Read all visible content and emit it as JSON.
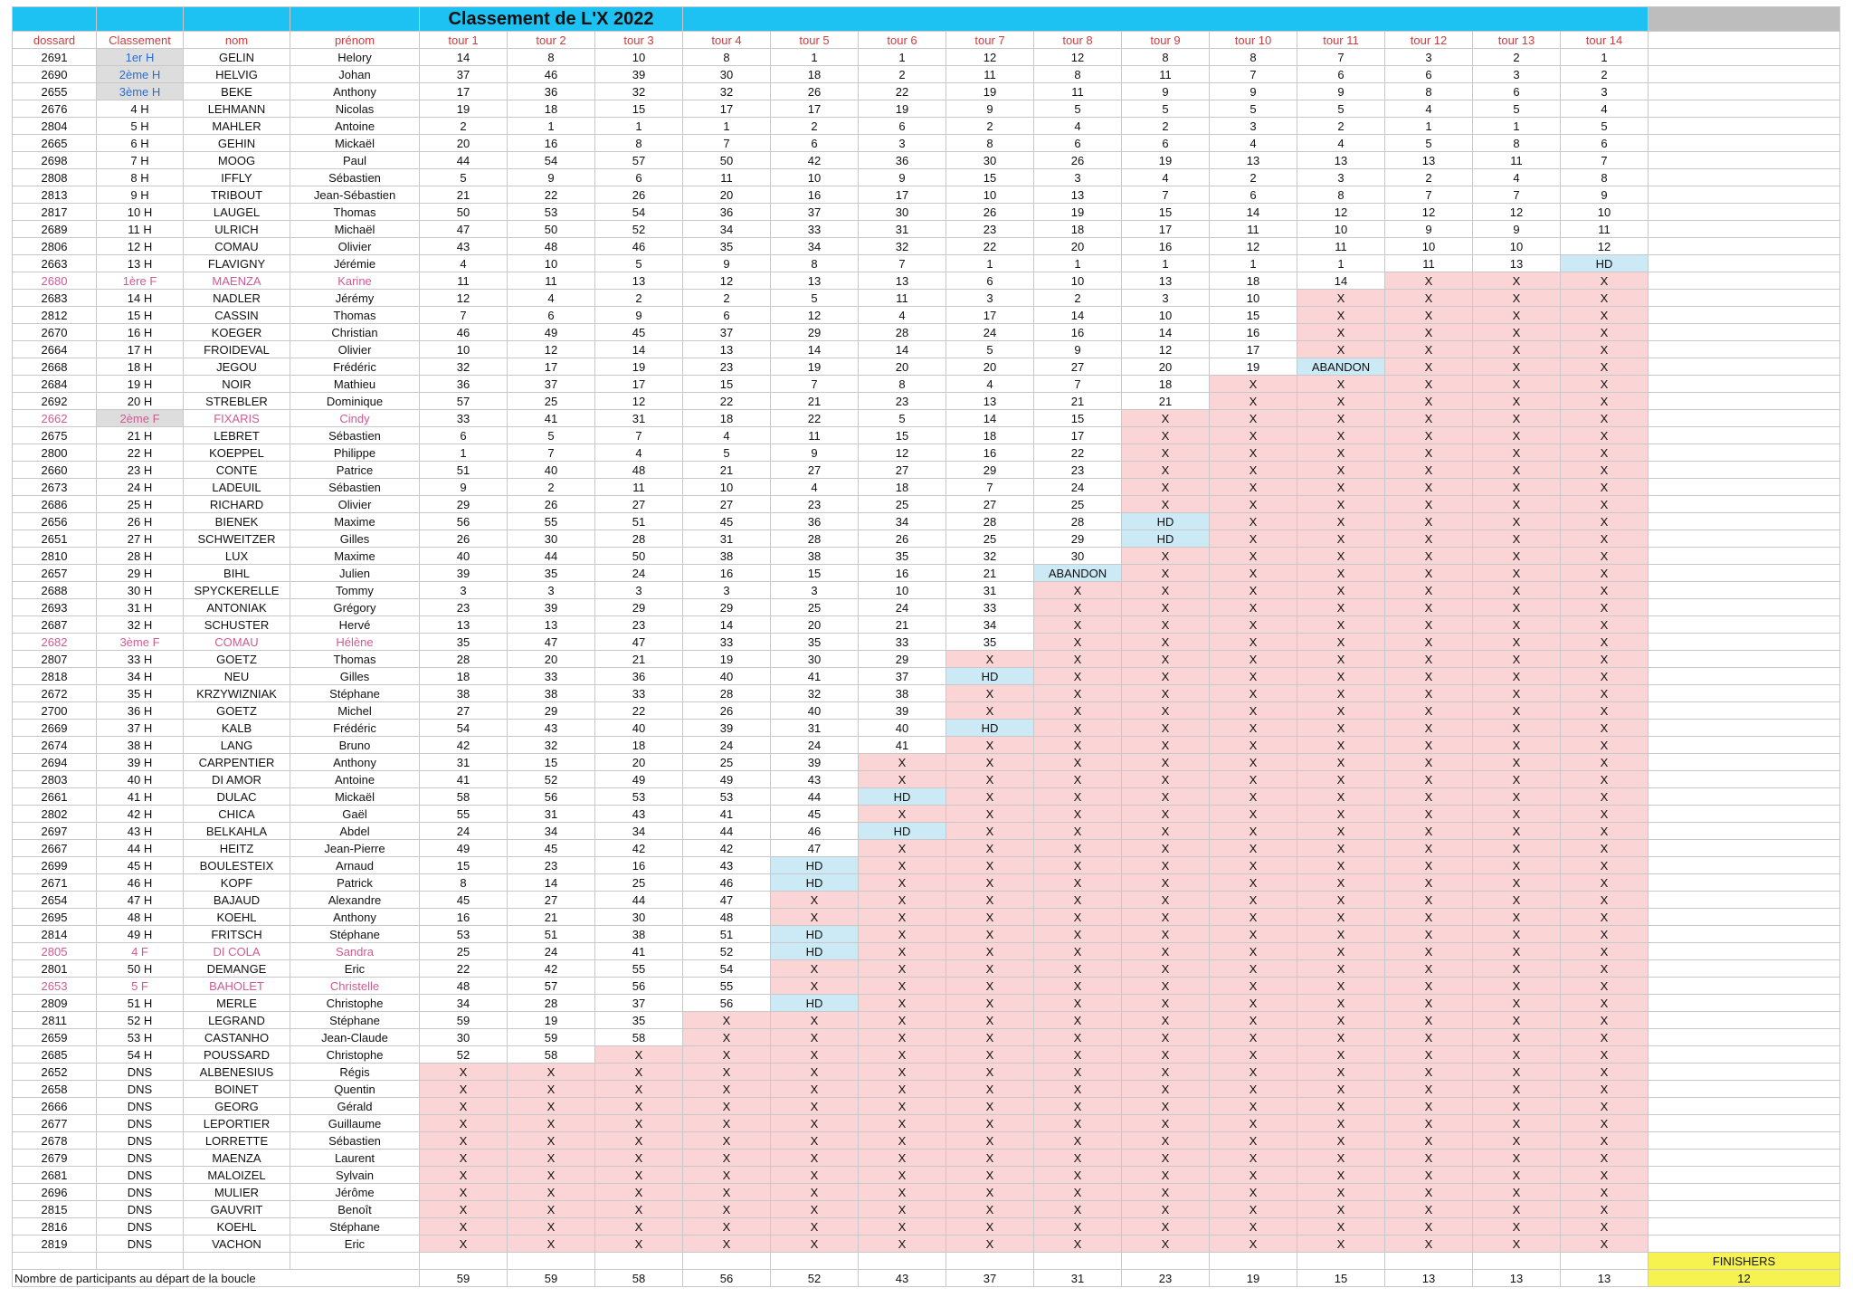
{
  "title": "Classement de L'X 2022",
  "headers": [
    "dossard",
    "Classement",
    "nom",
    "prénom",
    "tour 1",
    "tour 2",
    "tour 3",
    "tour 4",
    "tour 5",
    "tour 6",
    "tour 7",
    "tour 8",
    "tour 9",
    "tour 10",
    "tour 11",
    "tour 12",
    "tour 13",
    "tour 14"
  ],
  "rows": [
    [
      "2691",
      "1er H",
      "GELIN",
      "Helory",
      "14",
      "8",
      "10",
      "8",
      "1",
      "1",
      "12",
      "12",
      "8",
      "8",
      "7",
      "3",
      "2",
      "1"
    ],
    [
      "2690",
      "2ème H",
      "HELVIG",
      "Johan",
      "37",
      "46",
      "39",
      "30",
      "18",
      "2",
      "11",
      "8",
      "11",
      "7",
      "6",
      "6",
      "3",
      "2"
    ],
    [
      "2655",
      "3ème H",
      "BEKE",
      "Anthony",
      "17",
      "36",
      "32",
      "32",
      "26",
      "22",
      "19",
      "11",
      "9",
      "9",
      "9",
      "8",
      "6",
      "3"
    ],
    [
      "2676",
      "4 H",
      "LEHMANN",
      "Nicolas",
      "19",
      "18",
      "15",
      "17",
      "17",
      "19",
      "9",
      "5",
      "5",
      "5",
      "5",
      "4",
      "5",
      "4"
    ],
    [
      "2804",
      "5 H",
      "MAHLER",
      "Antoine",
      "2",
      "1",
      "1",
      "1",
      "2",
      "6",
      "2",
      "4",
      "2",
      "3",
      "2",
      "1",
      "1",
      "5"
    ],
    [
      "2665",
      "6 H",
      "GEHIN",
      "Mickaël",
      "20",
      "16",
      "8",
      "7",
      "6",
      "3",
      "8",
      "6",
      "6",
      "4",
      "4",
      "5",
      "8",
      "6"
    ],
    [
      "2698",
      "7 H",
      "MOOG",
      "Paul",
      "44",
      "54",
      "57",
      "50",
      "42",
      "36",
      "30",
      "26",
      "19",
      "13",
      "13",
      "13",
      "11",
      "7"
    ],
    [
      "2808",
      "8 H",
      "IFFLY",
      "Sébastien",
      "5",
      "9",
      "6",
      "11",
      "10",
      "9",
      "15",
      "3",
      "4",
      "2",
      "3",
      "2",
      "4",
      "8"
    ],
    [
      "2813",
      "9 H",
      "TRIBOUT",
      "Jean-Sébastien",
      "21",
      "22",
      "26",
      "20",
      "16",
      "17",
      "10",
      "13",
      "7",
      "6",
      "8",
      "7",
      "7",
      "9"
    ],
    [
      "2817",
      "10 H",
      "LAUGEL",
      "Thomas",
      "50",
      "53",
      "54",
      "36",
      "37",
      "30",
      "26",
      "19",
      "15",
      "14",
      "12",
      "12",
      "12",
      "10"
    ],
    [
      "2689",
      "11 H",
      "ULRICH",
      "Michaël",
      "47",
      "50",
      "52",
      "34",
      "33",
      "31",
      "23",
      "18",
      "17",
      "11",
      "10",
      "9",
      "9",
      "11"
    ],
    [
      "2806",
      "12 H",
      "COMAU",
      "Olivier",
      "43",
      "48",
      "46",
      "35",
      "34",
      "32",
      "22",
      "20",
      "16",
      "12",
      "11",
      "10",
      "10",
      "12"
    ],
    [
      "2663",
      "13 H",
      "FLAVIGNY",
      "Jérémie",
      "4",
      "10",
      "5",
      "9",
      "8",
      "7",
      "1",
      "1",
      "1",
      "1",
      "1",
      "11",
      "13",
      "HD"
    ],
    [
      "2680",
      "1ère F",
      "MAENZA",
      "Karine",
      "11",
      "11",
      "13",
      "12",
      "13",
      "13",
      "6",
      "10",
      "13",
      "18",
      "14",
      "X",
      "X",
      "X"
    ],
    [
      "2683",
      "14 H",
      "NADLER",
      "Jérémy",
      "12",
      "4",
      "2",
      "2",
      "5",
      "11",
      "3",
      "2",
      "3",
      "10",
      "X",
      "X",
      "X",
      "X"
    ],
    [
      "2812",
      "15 H",
      "CASSIN",
      "Thomas",
      "7",
      "6",
      "9",
      "6",
      "12",
      "4",
      "17",
      "14",
      "10",
      "15",
      "X",
      "X",
      "X",
      "X"
    ],
    [
      "2670",
      "16 H",
      "KOEGER",
      "Christian",
      "46",
      "49",
      "45",
      "37",
      "29",
      "28",
      "24",
      "16",
      "14",
      "16",
      "X",
      "X",
      "X",
      "X"
    ],
    [
      "2664",
      "17 H",
      "FROIDEVAL",
      "Olivier",
      "10",
      "12",
      "14",
      "13",
      "14",
      "14",
      "5",
      "9",
      "12",
      "17",
      "X",
      "X",
      "X",
      "X"
    ],
    [
      "2668",
      "18 H",
      "JEGOU",
      "Frédéric",
      "32",
      "17",
      "19",
      "23",
      "19",
      "20",
      "20",
      "27",
      "20",
      "19",
      "ABANDON",
      "X",
      "X",
      "X"
    ],
    [
      "2684",
      "19 H",
      "NOIR",
      "Mathieu",
      "36",
      "37",
      "17",
      "15",
      "7",
      "8",
      "4",
      "7",
      "18",
      "X",
      "X",
      "X",
      "X",
      "X"
    ],
    [
      "2692",
      "20 H",
      "STREBLER",
      "Dominique",
      "57",
      "25",
      "12",
      "22",
      "21",
      "23",
      "13",
      "21",
      "21",
      "X",
      "X",
      "X",
      "X",
      "X"
    ],
    [
      "2662",
      "2ème F",
      "FIXARIS",
      "Cindy",
      "33",
      "41",
      "31",
      "18",
      "22",
      "5",
      "14",
      "15",
      "X",
      "X",
      "X",
      "X",
      "X",
      "X"
    ],
    [
      "2675",
      "21 H",
      "LEBRET",
      "Sébastien",
      "6",
      "5",
      "7",
      "4",
      "11",
      "15",
      "18",
      "17",
      "X",
      "X",
      "X",
      "X",
      "X",
      "X"
    ],
    [
      "2800",
      "22 H",
      "KOEPPEL",
      "Philippe",
      "1",
      "7",
      "4",
      "5",
      "9",
      "12",
      "16",
      "22",
      "X",
      "X",
      "X",
      "X",
      "X",
      "X"
    ],
    [
      "2660",
      "23 H",
      "CONTE",
      "Patrice",
      "51",
      "40",
      "48",
      "21",
      "27",
      "27",
      "29",
      "23",
      "X",
      "X",
      "X",
      "X",
      "X",
      "X"
    ],
    [
      "2673",
      "24 H",
      "LADEUIL",
      "Sébastien",
      "9",
      "2",
      "11",
      "10",
      "4",
      "18",
      "7",
      "24",
      "X",
      "X",
      "X",
      "X",
      "X",
      "X"
    ],
    [
      "2686",
      "25 H",
      "RICHARD",
      "Olivier",
      "29",
      "26",
      "27",
      "27",
      "23",
      "25",
      "27",
      "25",
      "X",
      "X",
      "X",
      "X",
      "X",
      "X"
    ],
    [
      "2656",
      "26 H",
      "BIENEK",
      "Maxime",
      "56",
      "55",
      "51",
      "45",
      "36",
      "34",
      "28",
      "28",
      "HD",
      "X",
      "X",
      "X",
      "X",
      "X"
    ],
    [
      "2651",
      "27 H",
      "SCHWEITZER",
      "Gilles",
      "26",
      "30",
      "28",
      "31",
      "28",
      "26",
      "25",
      "29",
      "HD",
      "X",
      "X",
      "X",
      "X",
      "X"
    ],
    [
      "2810",
      "28 H",
      "LUX",
      "Maxime",
      "40",
      "44",
      "50",
      "38",
      "38",
      "35",
      "32",
      "30",
      "X",
      "X",
      "X",
      "X",
      "X",
      "X"
    ],
    [
      "2657",
      "29 H",
      "BIHL",
      "Julien",
      "39",
      "35",
      "24",
      "16",
      "15",
      "16",
      "21",
      "ABANDON",
      "X",
      "X",
      "X",
      "X",
      "X",
      "X"
    ],
    [
      "2688",
      "30 H",
      "SPYCKERELLE",
      "Tommy",
      "3",
      "3",
      "3",
      "3",
      "3",
      "10",
      "31",
      "X",
      "X",
      "X",
      "X",
      "X",
      "X",
      "X"
    ],
    [
      "2693",
      "31 H",
      "ANTONIAK",
      "Grégory",
      "23",
      "39",
      "29",
      "29",
      "25",
      "24",
      "33",
      "X",
      "X",
      "X",
      "X",
      "X",
      "X",
      "X"
    ],
    [
      "2687",
      "32 H",
      "SCHUSTER",
      "Hervé",
      "13",
      "13",
      "23",
      "14",
      "20",
      "21",
      "34",
      "X",
      "X",
      "X",
      "X",
      "X",
      "X",
      "X"
    ],
    [
      "2682",
      "3ème F",
      "COMAU",
      "Hélène",
      "35",
      "47",
      "47",
      "33",
      "35",
      "33",
      "35",
      "X",
      "X",
      "X",
      "X",
      "X",
      "X",
      "X"
    ],
    [
      "2807",
      "33 H",
      "GOETZ",
      "Thomas",
      "28",
      "20",
      "21",
      "19",
      "30",
      "29",
      "X",
      "X",
      "X",
      "X",
      "X",
      "X",
      "X",
      "X"
    ],
    [
      "2818",
      "34 H",
      "NEU",
      "Gilles",
      "18",
      "33",
      "36",
      "40",
      "41",
      "37",
      "HD",
      "X",
      "X",
      "X",
      "X",
      "X",
      "X",
      "X"
    ],
    [
      "2672",
      "35 H",
      "KRZYWIZNIAK",
      "Stéphane",
      "38",
      "38",
      "33",
      "28",
      "32",
      "38",
      "X",
      "X",
      "X",
      "X",
      "X",
      "X",
      "X",
      "X"
    ],
    [
      "2700",
      "36 H",
      "GOETZ",
      "Michel",
      "27",
      "29",
      "22",
      "26",
      "40",
      "39",
      "X",
      "X",
      "X",
      "X",
      "X",
      "X",
      "X",
      "X"
    ],
    [
      "2669",
      "37 H",
      "KALB",
      "Frédéric",
      "54",
      "43",
      "40",
      "39",
      "31",
      "40",
      "HD",
      "X",
      "X",
      "X",
      "X",
      "X",
      "X",
      "X"
    ],
    [
      "2674",
      "38 H",
      "LANG",
      "Bruno",
      "42",
      "32",
      "18",
      "24",
      "24",
      "41",
      "X",
      "X",
      "X",
      "X",
      "X",
      "X",
      "X",
      "X"
    ],
    [
      "2694",
      "39 H",
      "CARPENTIER",
      "Anthony",
      "31",
      "15",
      "20",
      "25",
      "39",
      "X",
      "X",
      "X",
      "X",
      "X",
      "X",
      "X",
      "X",
      "X"
    ],
    [
      "2803",
      "40 H",
      "DI AMOR",
      "Antoine",
      "41",
      "52",
      "49",
      "49",
      "43",
      "X",
      "X",
      "X",
      "X",
      "X",
      "X",
      "X",
      "X",
      "X"
    ],
    [
      "2661",
      "41 H",
      "DULAC",
      "Mickaël",
      "58",
      "56",
      "53",
      "53",
      "44",
      "HD",
      "X",
      "X",
      "X",
      "X",
      "X",
      "X",
      "X",
      "X"
    ],
    [
      "2802",
      "42 H",
      "CHICA",
      "Gaël",
      "55",
      "31",
      "43",
      "41",
      "45",
      "X",
      "X",
      "X",
      "X",
      "X",
      "X",
      "X",
      "X",
      "X"
    ],
    [
      "2697",
      "43 H",
      "BELKAHLA",
      "Abdel",
      "24",
      "34",
      "34",
      "44",
      "46",
      "HD",
      "X",
      "X",
      "X",
      "X",
      "X",
      "X",
      "X",
      "X"
    ],
    [
      "2667",
      "44 H",
      "HEITZ",
      "Jean-Pierre",
      "49",
      "45",
      "42",
      "42",
      "47",
      "X",
      "X",
      "X",
      "X",
      "X",
      "X",
      "X",
      "X",
      "X"
    ],
    [
      "2699",
      "45 H",
      "BOULESTEIX",
      "Arnaud",
      "15",
      "23",
      "16",
      "43",
      "HD",
      "X",
      "X",
      "X",
      "X",
      "X",
      "X",
      "X",
      "X",
      "X"
    ],
    [
      "2671",
      "46 H",
      "KOPF",
      "Patrick",
      "8",
      "14",
      "25",
      "46",
      "HD",
      "X",
      "X",
      "X",
      "X",
      "X",
      "X",
      "X",
      "X",
      "X"
    ],
    [
      "2654",
      "47 H",
      "BAJAUD",
      "Alexandre",
      "45",
      "27",
      "44",
      "47",
      "X",
      "X",
      "X",
      "X",
      "X",
      "X",
      "X",
      "X",
      "X",
      "X"
    ],
    [
      "2695",
      "48 H",
      "KOEHL",
      "Anthony",
      "16",
      "21",
      "30",
      "48",
      "X",
      "X",
      "X",
      "X",
      "X",
      "X",
      "X",
      "X",
      "X",
      "X"
    ],
    [
      "2814",
      "49 H",
      "FRITSCH",
      "Stéphane",
      "53",
      "51",
      "38",
      "51",
      "HD",
      "X",
      "X",
      "X",
      "X",
      "X",
      "X",
      "X",
      "X",
      "X"
    ],
    [
      "2805",
      "4 F",
      "DI COLA",
      "Sandra",
      "25",
      "24",
      "41",
      "52",
      "HD",
      "X",
      "X",
      "X",
      "X",
      "X",
      "X",
      "X",
      "X",
      "X"
    ],
    [
      "2801",
      "50 H",
      "DEMANGE",
      "Eric",
      "22",
      "42",
      "55",
      "54",
      "X",
      "X",
      "X",
      "X",
      "X",
      "X",
      "X",
      "X",
      "X",
      "X"
    ],
    [
      "2653",
      "5 F",
      "BAHOLET",
      "Christelle",
      "48",
      "57",
      "56",
      "55",
      "X",
      "X",
      "X",
      "X",
      "X",
      "X",
      "X",
      "X",
      "X",
      "X"
    ],
    [
      "2809",
      "51 H",
      "MERLE",
      "Christophe",
      "34",
      "28",
      "37",
      "56",
      "HD",
      "X",
      "X",
      "X",
      "X",
      "X",
      "X",
      "X",
      "X",
      "X"
    ],
    [
      "2811",
      "52 H",
      "LEGRAND",
      "Stéphane",
      "59",
      "19",
      "35",
      "X",
      "X",
      "X",
      "X",
      "X",
      "X",
      "X",
      "X",
      "X",
      "X",
      "X"
    ],
    [
      "2659",
      "53 H",
      "CASTANHO",
      "Jean-Claude",
      "30",
      "59",
      "58",
      "X",
      "X",
      "X",
      "X",
      "X",
      "X",
      "X",
      "X",
      "X",
      "X",
      "X"
    ],
    [
      "2685",
      "54 H",
      "POUSSARD",
      "Christophe",
      "52",
      "58",
      "X",
      "X",
      "X",
      "X",
      "X",
      "X",
      "X",
      "X",
      "X",
      "X",
      "X",
      "X"
    ],
    [
      "2652",
      "DNS",
      "ALBENESIUS",
      "Régis",
      "X",
      "X",
      "X",
      "X",
      "X",
      "X",
      "X",
      "X",
      "X",
      "X",
      "X",
      "X",
      "X",
      "X"
    ],
    [
      "2658",
      "DNS",
      "BOINET",
      "Quentin",
      "X",
      "X",
      "X",
      "X",
      "X",
      "X",
      "X",
      "X",
      "X",
      "X",
      "X",
      "X",
      "X",
      "X"
    ],
    [
      "2666",
      "DNS",
      "GEORG",
      "Gérald",
      "X",
      "X",
      "X",
      "X",
      "X",
      "X",
      "X",
      "X",
      "X",
      "X",
      "X",
      "X",
      "X",
      "X"
    ],
    [
      "2677",
      "DNS",
      "LEPORTIER",
      "Guillaume",
      "X",
      "X",
      "X",
      "X",
      "X",
      "X",
      "X",
      "X",
      "X",
      "X",
      "X",
      "X",
      "X",
      "X"
    ],
    [
      "2678",
      "DNS",
      "LORRETTE",
      "Sébastien",
      "X",
      "X",
      "X",
      "X",
      "X",
      "X",
      "X",
      "X",
      "X",
      "X",
      "X",
      "X",
      "X",
      "X"
    ],
    [
      "2679",
      "DNS",
      "MAENZA",
      "Laurent",
      "X",
      "X",
      "X",
      "X",
      "X",
      "X",
      "X",
      "X",
      "X",
      "X",
      "X",
      "X",
      "X",
      "X"
    ],
    [
      "2681",
      "DNS",
      "MALOIZEL",
      "Sylvain",
      "X",
      "X",
      "X",
      "X",
      "X",
      "X",
      "X",
      "X",
      "X",
      "X",
      "X",
      "X",
      "X",
      "X"
    ],
    [
      "2696",
      "DNS",
      "MULIER",
      "Jérôme",
      "X",
      "X",
      "X",
      "X",
      "X",
      "X",
      "X",
      "X",
      "X",
      "X",
      "X",
      "X",
      "X",
      "X"
    ],
    [
      "2815",
      "DNS",
      "GAUVRIT",
      "Benoît",
      "X",
      "X",
      "X",
      "X",
      "X",
      "X",
      "X",
      "X",
      "X",
      "X",
      "X",
      "X",
      "X",
      "X"
    ],
    [
      "2816",
      "DNS",
      "KOEHL",
      "Stéphane",
      "X",
      "X",
      "X",
      "X",
      "X",
      "X",
      "X",
      "X",
      "X",
      "X",
      "X",
      "X",
      "X",
      "X"
    ],
    [
      "2819",
      "DNS",
      "VACHON",
      "Eric",
      "X",
      "X",
      "X",
      "X",
      "X",
      "X",
      "X",
      "X",
      "X",
      "X",
      "X",
      "X",
      "X",
      "X"
    ]
  ],
  "female_dossards": [
    "2680",
    "2662",
    "2682",
    "2805",
    "2653"
  ],
  "footer": {
    "label": "Nombre de participants au départ de la boucle",
    "counts": [
      "59",
      "59",
      "58",
      "56",
      "52",
      "43",
      "37",
      "31",
      "23",
      "19",
      "15",
      "13",
      "13",
      "13"
    ],
    "finishers_label": "FINISHERS",
    "finishers_value": "12"
  },
  "colors": {
    "title_bg": "#1ec2f2",
    "header_text": "#cc3c3c",
    "out_cell": "#fbd5d5",
    "hd_cell": "#cce9f6",
    "podium_text": "#2a6fd1",
    "female_text": "#d05a93",
    "finishers_bg": "#f6f350"
  }
}
